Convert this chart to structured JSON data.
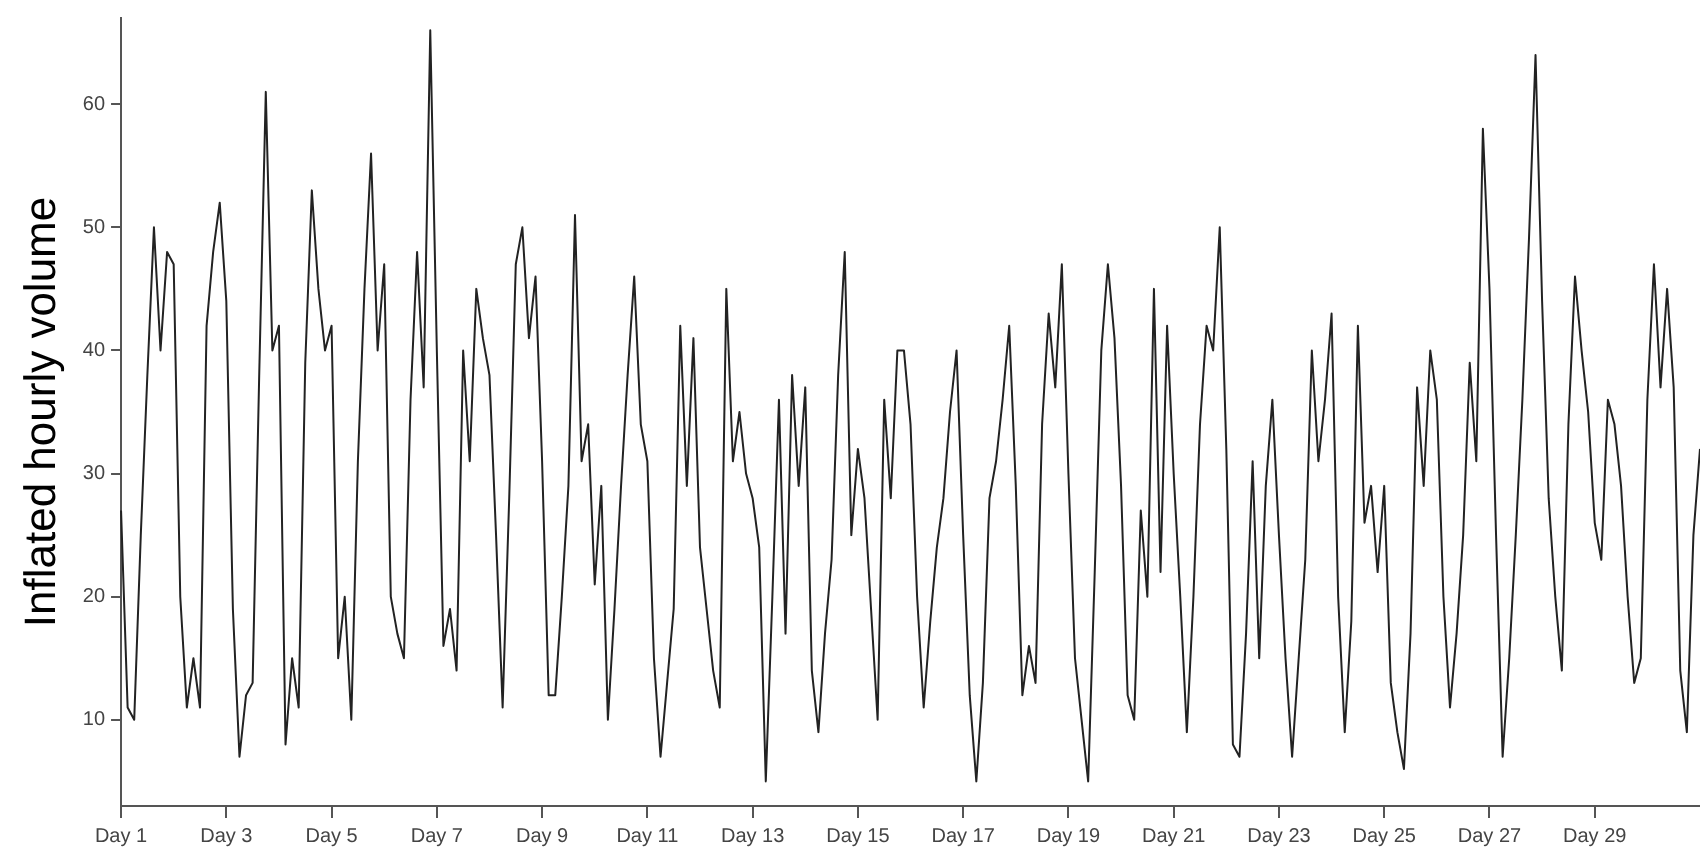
{
  "chart_data": {
    "type": "line",
    "ylabel": "Inflated hourly volume",
    "categories": [
      "Day 1",
      null,
      null,
      null,
      null,
      null,
      null,
      null,
      null,
      null,
      null,
      null,
      null,
      null,
      null,
      null,
      "Day 3",
      null,
      null,
      null,
      null,
      null,
      null,
      null,
      null,
      null,
      null,
      null,
      null,
      null,
      null,
      null,
      "Day 5",
      null,
      null,
      null,
      null,
      null,
      null,
      null,
      null,
      null,
      null,
      null,
      null,
      null,
      null,
      null,
      "Day 7",
      null,
      null,
      null,
      null,
      null,
      null,
      null,
      null,
      null,
      null,
      null,
      null,
      null,
      null,
      null,
      "Day 9",
      null,
      null,
      null,
      null,
      null,
      null,
      null,
      null,
      null,
      null,
      null,
      null,
      null,
      null,
      null,
      "Day 11",
      null,
      null,
      null,
      null,
      null,
      null,
      null,
      null,
      null,
      null,
      null,
      null,
      null,
      null,
      null,
      "Day 13",
      null,
      null,
      null,
      null,
      null,
      null,
      null,
      null,
      null,
      null,
      null,
      null,
      null,
      null,
      null,
      "Day 15",
      null,
      null,
      null,
      null,
      null,
      null,
      null,
      null,
      null,
      null,
      null,
      null,
      null,
      null,
      null,
      "Day 17",
      null,
      null,
      null,
      null,
      null,
      null,
      null,
      null,
      null,
      null,
      null,
      null,
      null,
      null,
      null,
      "Day 19",
      null,
      null,
      null,
      null,
      null,
      null,
      null,
      null,
      null,
      null,
      null,
      null,
      null,
      null,
      null,
      "Day 21",
      null,
      null,
      null,
      null,
      null,
      null,
      null,
      null,
      null,
      null,
      null,
      null,
      null,
      null,
      null,
      "Day 23",
      null,
      null,
      null,
      null,
      null,
      null,
      null,
      null,
      null,
      null,
      null,
      null,
      null,
      null,
      null,
      "Day 25",
      null,
      null,
      null,
      null,
      null,
      null,
      null,
      null,
      null,
      null,
      null,
      null,
      null,
      null,
      null,
      "Day 27",
      null,
      null,
      null,
      null,
      null,
      null,
      null,
      null,
      null,
      null,
      null,
      null,
      null,
      null,
      null,
      "Day 29",
      null,
      null,
      null,
      null,
      null,
      null,
      null,
      null,
      null,
      null,
      null,
      null,
      null,
      null,
      null,
      null
    ],
    "ylim": [
      3,
      67
    ],
    "yticks": [
      10,
      20,
      30,
      40,
      50,
      60
    ],
    "grid": false,
    "legend": false,
    "series": [
      {
        "color": "#222222",
        "values": [
          27,
          11,
          10,
          25,
          38,
          50,
          40,
          48,
          47,
          20,
          11,
          15,
          11,
          42,
          48,
          52,
          44,
          19,
          7,
          12,
          13,
          38,
          61,
          40,
          42,
          8,
          15,
          11,
          39,
          53,
          45,
          40,
          42,
          15,
          20,
          10,
          31,
          45,
          56,
          40,
          47,
          20,
          17,
          15,
          36,
          48,
          37,
          66,
          40,
          16,
          19,
          14,
          40,
          31,
          45,
          41,
          38,
          25,
          11,
          28,
          47,
          50,
          41,
          46,
          31,
          12,
          12,
          20,
          29,
          51,
          31,
          34,
          21,
          29,
          10,
          19,
          29,
          38,
          46,
          34,
          31,
          15,
          7,
          13,
          19,
          42,
          29,
          41,
          24,
          19,
          14,
          11,
          45,
          31,
          35,
          30,
          28,
          24,
          5,
          20,
          36,
          17,
          38,
          29,
          37,
          14,
          9,
          17,
          23,
          38,
          48,
          25,
          32,
          28,
          19,
          10,
          36,
          28,
          40,
          40,
          34,
          20,
          11,
          18,
          24,
          28,
          35,
          40,
          25,
          12,
          5,
          13,
          28,
          31,
          36,
          42,
          29,
          12,
          16,
          13,
          34,
          43,
          37,
          47,
          30,
          15,
          10,
          5,
          22,
          40,
          47,
          41,
          29,
          12,
          10,
          27,
          20,
          45,
          22,
          42,
          30,
          20,
          9,
          20,
          34,
          42,
          40,
          50,
          32,
          8,
          7,
          17,
          31,
          15,
          29,
          36,
          25,
          15,
          7,
          15,
          23,
          40,
          31,
          36,
          43,
          20,
          9,
          18,
          42,
          26,
          29,
          22,
          29,
          13,
          9,
          6,
          17,
          37,
          29,
          40,
          36,
          20,
          11,
          17,
          25,
          39,
          31,
          58,
          45,
          25,
          7,
          15,
          25,
          36,
          49,
          64,
          44,
          28,
          20,
          14,
          34,
          46,
          40,
          35,
          26,
          23,
          36,
          34,
          29,
          20,
          13,
          15,
          36,
          47,
          37,
          45,
          37,
          14,
          9,
          25,
          32
        ]
      }
    ]
  }
}
